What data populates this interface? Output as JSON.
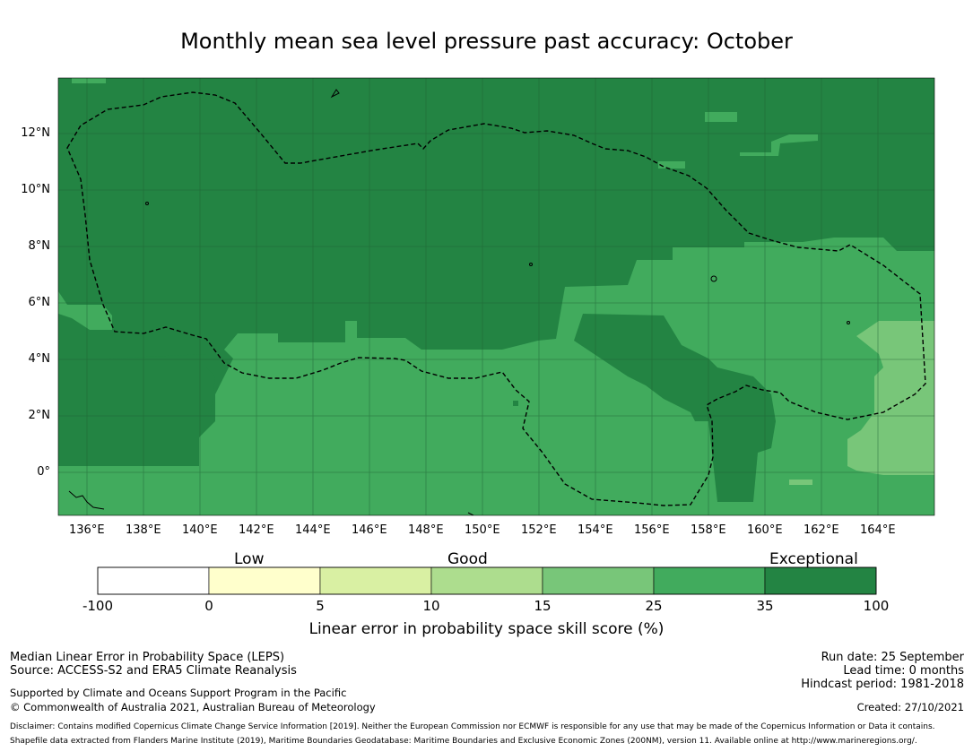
{
  "title": "Monthly mean sea level pressure past accuracy: October",
  "map": {
    "lon_labels": [
      "136°E",
      "138°E",
      "140°E",
      "142°E",
      "144°E",
      "146°E",
      "148°E",
      "150°E",
      "152°E",
      "154°E",
      "156°E",
      "158°E",
      "160°E",
      "162°E",
      "164°E"
    ],
    "lat_labels": [
      "12°N",
      "10°N",
      "8°N",
      "6°N",
      "4°N",
      "2°N",
      "0°"
    ],
    "lon_values": [
      136,
      138,
      140,
      142,
      144,
      146,
      148,
      150,
      152,
      154,
      156,
      158,
      160,
      162,
      164
    ],
    "lat_values": [
      12,
      10,
      8,
      6,
      4,
      2,
      0
    ],
    "extent": {
      "lon_min": 135,
      "lon_max": 166,
      "lat_min": -1.5,
      "lat_max": 14
    },
    "boundary": "dashed EEZ outline",
    "colors": {
      "exceptional": "#238443",
      "very_good": "#41ab5d",
      "good": "#78c679"
    }
  },
  "colorbar": {
    "categories": [
      "Low",
      "Good",
      "Exceptional"
    ],
    "ticks": [
      "-100",
      "0",
      "5",
      "10",
      "15",
      "25",
      "35",
      "100"
    ],
    "colors": [
      "#ffffff",
      "#ffffcc",
      "#d9f0a3",
      "#addd8e",
      "#78c679",
      "#41ab5d",
      "#238443"
    ],
    "label": "Linear error in probability space skill score (%)"
  },
  "footer": {
    "line1": "Median Linear Error in Probability Space (LEPS)",
    "line2": "Source: ACCESS-S2 and ERA5 Climate Reanalysis",
    "line3": "Supported by Climate and Oceans Support Program in the Pacific",
    "line4": "© Commonwealth of Australia 2021, Australian Bureau of Meteorology",
    "run_date": "Run date: 25 September",
    "lead_time": "Lead time: 0 months",
    "hindcast": "Hindcast period: 1981-2018",
    "created": "Created: 27/10/2021",
    "disclaimer": "Disclaimer: Contains modified Copernicus Climate Change Service Information [2019]. Neither the European Commission nor ECMWF is responsible for any use that may be made of the Copernicus Information or Data it contains.",
    "shapefile": "Shapefile data extracted from Flanders Marine Institute (2019), Maritime Boundaries Geodatabase: Maritime Boundaries and Exclusive Economic Zones (200NM), version 11. Available online at http://www.marineregions.org/."
  }
}
